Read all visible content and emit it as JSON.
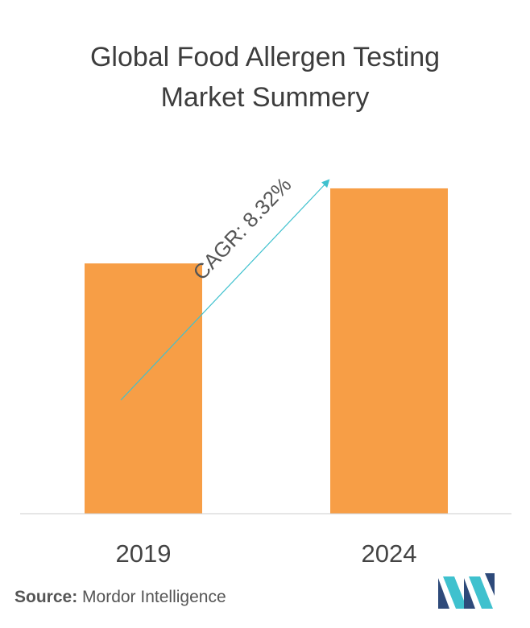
{
  "title": {
    "line1": "Global Food Allergen Testing",
    "line2": "Market Summery"
  },
  "chart_data": {
    "type": "bar",
    "categories": [
      "2019",
      "2024"
    ],
    "values": [
      60,
      78
    ],
    "ylim": [
      0,
      100
    ],
    "annotation": "CAGR: 8.32%",
    "bar_color": "#F79E46",
    "arrow_color": "#3FC1CE",
    "axis_color": "#cccccc"
  },
  "source": {
    "label": "Source:",
    "text": "Mordor Intelligence"
  },
  "logo": {
    "icon": "mordor-intelligence-logo",
    "colors": [
      "#2E4A7A",
      "#3FC1CE"
    ]
  }
}
